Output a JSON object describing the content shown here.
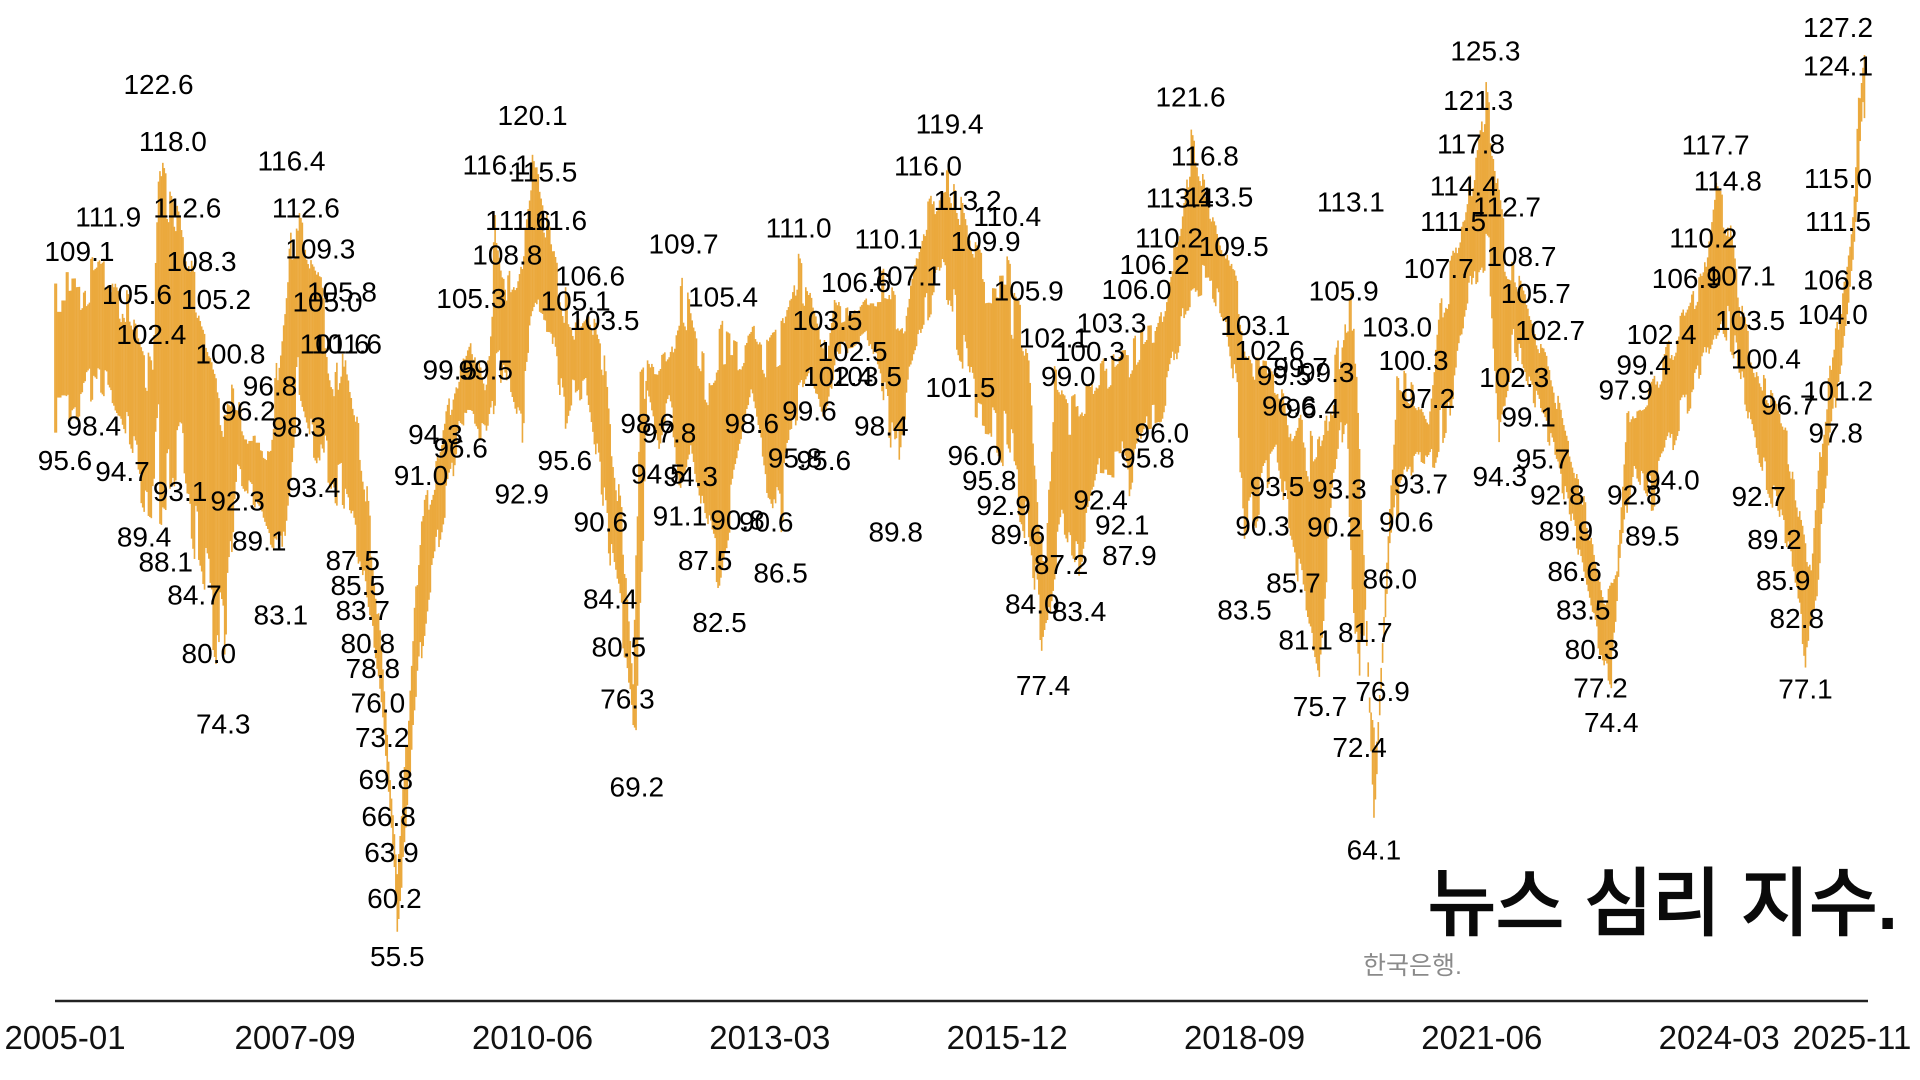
{
  "chart_data": {
    "type": "area",
    "title": "뉴스 심리 지수.",
    "source": "한국은행.",
    "band_color": "#EBA93D",
    "label_color": "#000000",
    "axis_color": "#222222",
    "x_axis": {
      "ticks": [
        {
          "m": 0,
          "label": "2005-01"
        },
        {
          "m": 32,
          "label": "2007-09"
        },
        {
          "m": 65,
          "label": "2010-06"
        },
        {
          "m": 98,
          "label": "2013-03"
        },
        {
          "m": 131,
          "label": "2015-12"
        },
        {
          "m": 164,
          "label": "2018-09"
        },
        {
          "m": 197,
          "label": "2021-06"
        },
        {
          "m": 230,
          "label": "2024-03"
        },
        {
          "m": 250,
          "label": "2025-11"
        }
      ],
      "start_label": "2005-01",
      "end_label": "2025-11",
      "total_months": 250
    },
    "y_value_range_visible": [
      55.5,
      127.2
    ],
    "annotations": [
      [
        0,
        95.6,
        "b"
      ],
      [
        2,
        109.1,
        "a"
      ],
      [
        4,
        98.4,
        "b"
      ],
      [
        6,
        111.9,
        "a"
      ],
      [
        8,
        94.7,
        "b"
      ],
      [
        10,
        105.6,
        "a"
      ],
      [
        11,
        89.4,
        "b"
      ],
      [
        12,
        102.4,
        "a"
      ],
      [
        13,
        122.6,
        "a"
      ],
      [
        14,
        88.1,
        "b"
      ],
      [
        15,
        118.0,
        "a"
      ],
      [
        16,
        93.1,
        "b"
      ],
      [
        17,
        112.6,
        "a"
      ],
      [
        18,
        84.7,
        "b"
      ],
      [
        19,
        108.3,
        "a"
      ],
      [
        20,
        80.0,
        "b"
      ],
      [
        21,
        105.2,
        "a"
      ],
      [
        22,
        74.3,
        "b"
      ],
      [
        23,
        100.8,
        "a"
      ],
      [
        24,
        92.3,
        "b"
      ],
      [
        25.5,
        96.2,
        "a"
      ],
      [
        27,
        89.1,
        "b"
      ],
      [
        28.5,
        96.8,
        "a"
      ],
      [
        30,
        83.1,
        "b"
      ],
      [
        31.5,
        116.4,
        "a"
      ],
      [
        32.5,
        98.3,
        "b"
      ],
      [
        33.5,
        112.6,
        "a"
      ],
      [
        34.5,
        93.4,
        "b"
      ],
      [
        35.5,
        109.3,
        "a"
      ],
      [
        36.5,
        105.0,
        "a"
      ],
      [
        37.5,
        101.6,
        "a"
      ],
      [
        38.5,
        105.8,
        "a"
      ],
      [
        39.2,
        101.6,
        "a"
      ],
      [
        40,
        87.5,
        "b"
      ],
      [
        40.7,
        85.5,
        "b"
      ],
      [
        41.4,
        83.7,
        "b"
      ],
      [
        42.1,
        80.8,
        "b"
      ],
      [
        42.8,
        78.8,
        "b"
      ],
      [
        43.5,
        76.0,
        "b"
      ],
      [
        44.1,
        73.2,
        "b"
      ],
      [
        44.6,
        69.8,
        "b"
      ],
      [
        45,
        66.8,
        "b"
      ],
      [
        45.4,
        63.9,
        "b"
      ],
      [
        45.8,
        60.2,
        "b"
      ],
      [
        46.2,
        55.5,
        "b"
      ],
      [
        49.5,
        91.0,
        "a"
      ],
      [
        51.5,
        94.3,
        "a"
      ],
      [
        53.5,
        99.5,
        "a"
      ],
      [
        55,
        96.6,
        "b"
      ],
      [
        56.5,
        105.3,
        "a"
      ],
      [
        58.5,
        99.5,
        "a"
      ],
      [
        60,
        116.1,
        "a"
      ],
      [
        61.5,
        108.8,
        "a"
      ],
      [
        63,
        111.6,
        "a"
      ],
      [
        63.5,
        92.9,
        "b"
      ],
      [
        65,
        120.1,
        "a"
      ],
      [
        66.5,
        115.5,
        "a"
      ],
      [
        68,
        111.6,
        "a"
      ],
      [
        69.5,
        95.6,
        "b"
      ],
      [
        71,
        105.1,
        "a"
      ],
      [
        73,
        106.6,
        "a"
      ],
      [
        75,
        103.5,
        "a"
      ],
      [
        74.5,
        90.6,
        "b"
      ],
      [
        75.8,
        84.4,
        "b"
      ],
      [
        77,
        80.5,
        "b"
      ],
      [
        78.2,
        76.3,
        "b"
      ],
      [
        79.5,
        69.2,
        "b"
      ],
      [
        81,
        98.6,
        "b"
      ],
      [
        82.5,
        94.5,
        "b"
      ],
      [
        84,
        97.8,
        "b"
      ],
      [
        85.5,
        91.1,
        "b"
      ],
      [
        87,
        94.3,
        "b"
      ],
      [
        86,
        109.7,
        "a"
      ],
      [
        89,
        87.5,
        "b"
      ],
      [
        91,
        82.5,
        "b"
      ],
      [
        91.5,
        105.4,
        "a"
      ],
      [
        93.5,
        90.8,
        "b"
      ],
      [
        95.5,
        98.6,
        "b"
      ],
      [
        97.5,
        90.6,
        "b"
      ],
      [
        99.5,
        86.5,
        "b"
      ],
      [
        101.5,
        95.8,
        "b"
      ],
      [
        102,
        111.0,
        "a"
      ],
      [
        103.5,
        99.6,
        "b"
      ],
      [
        105.5,
        95.6,
        "b"
      ],
      [
        106,
        103.5,
        "a"
      ],
      [
        107.5,
        102.4,
        "b"
      ],
      [
        109.5,
        102.5,
        "b"
      ],
      [
        110,
        106.6,
        "a"
      ],
      [
        111.5,
        103.5,
        "b"
      ],
      [
        113.5,
        98.4,
        "b"
      ],
      [
        114.5,
        110.1,
        "a"
      ],
      [
        115.5,
        89.8,
        "b"
      ],
      [
        117,
        107.1,
        "a"
      ],
      [
        120,
        116.0,
        "a"
      ],
      [
        123,
        119.4,
        "a"
      ],
      [
        124.5,
        101.5,
        "b"
      ],
      [
        125.5,
        113.2,
        "a"
      ],
      [
        126.5,
        96.0,
        "b"
      ],
      [
        128,
        109.9,
        "a"
      ],
      [
        128.5,
        95.8,
        "b"
      ],
      [
        130.5,
        92.9,
        "b"
      ],
      [
        131,
        110.4,
        "a"
      ],
      [
        132.5,
        89.6,
        "b"
      ],
      [
        134,
        105.9,
        "a"
      ],
      [
        134.5,
        84.0,
        "b"
      ],
      [
        136,
        77.4,
        "b"
      ],
      [
        137.5,
        102.1,
        "a"
      ],
      [
        138.5,
        87.2,
        "b"
      ],
      [
        139.5,
        99.0,
        "a"
      ],
      [
        141,
        83.4,
        "b"
      ],
      [
        142.5,
        100.3,
        "a"
      ],
      [
        144,
        92.4,
        "b"
      ],
      [
        145.5,
        103.3,
        "a"
      ],
      [
        147,
        92.1,
        "b"
      ],
      [
        148,
        87.9,
        "b"
      ],
      [
        149,
        106.0,
        "a"
      ],
      [
        150.5,
        95.8,
        "b"
      ],
      [
        151.5,
        106.2,
        "a"
      ],
      [
        152.5,
        96.0,
        "b"
      ],
      [
        153.5,
        110.2,
        "a"
      ],
      [
        155,
        113.4,
        "a"
      ],
      [
        156.5,
        121.6,
        "a"
      ],
      [
        158.5,
        116.8,
        "a"
      ],
      [
        160.5,
        113.5,
        "a"
      ],
      [
        162.5,
        109.5,
        "a"
      ],
      [
        164,
        83.5,
        "b"
      ],
      [
        165.5,
        103.1,
        "a"
      ],
      [
        166.5,
        90.3,
        "b"
      ],
      [
        167.5,
        102.6,
        "a"
      ],
      [
        168.5,
        93.5,
        "b"
      ],
      [
        169.5,
        99.5,
        "a"
      ],
      [
        170.2,
        96.6,
        "a"
      ],
      [
        170.8,
        85.7,
        "b"
      ],
      [
        171.8,
        99.7,
        "a"
      ],
      [
        172.5,
        81.1,
        "b"
      ],
      [
        173.5,
        96.4,
        "a"
      ],
      [
        174.5,
        75.7,
        "b"
      ],
      [
        175.5,
        99.3,
        "a"
      ],
      [
        176.5,
        90.2,
        "b"
      ],
      [
        177.2,
        93.3,
        "b"
      ],
      [
        177.8,
        105.9,
        "a"
      ],
      [
        178.8,
        113.1,
        "a"
      ],
      [
        180,
        72.4,
        "b"
      ],
      [
        180.8,
        81.7,
        "b"
      ],
      [
        182,
        64.1,
        "b"
      ],
      [
        183.2,
        76.9,
        "b"
      ],
      [
        184.2,
        86.0,
        "b"
      ],
      [
        185.2,
        103.0,
        "a"
      ],
      [
        186.5,
        90.6,
        "b"
      ],
      [
        187.5,
        100.3,
        "a"
      ],
      [
        188.5,
        93.7,
        "b"
      ],
      [
        189.5,
        97.2,
        "a"
      ],
      [
        191,
        107.7,
        "a"
      ],
      [
        193,
        111.5,
        "a"
      ],
      [
        194.5,
        114.4,
        "a"
      ],
      [
        195.5,
        117.8,
        "a"
      ],
      [
        196.5,
        121.3,
        "a"
      ],
      [
        197.5,
        125.3,
        "a"
      ],
      [
        199.5,
        94.3,
        "b"
      ],
      [
        200.5,
        112.7,
        "a"
      ],
      [
        201.5,
        102.3,
        "b"
      ],
      [
        202.5,
        108.7,
        "a"
      ],
      [
        203.5,
        99.1,
        "b"
      ],
      [
        204.5,
        105.7,
        "a"
      ],
      [
        205.5,
        95.7,
        "b"
      ],
      [
        206.5,
        102.7,
        "a"
      ],
      [
        207.5,
        92.8,
        "b"
      ],
      [
        208.7,
        89.9,
        "b"
      ],
      [
        209.9,
        86.6,
        "b"
      ],
      [
        211.1,
        83.5,
        "b"
      ],
      [
        212.3,
        80.3,
        "b"
      ],
      [
        213.5,
        77.2,
        "b"
      ],
      [
        215,
        74.4,
        "b"
      ],
      [
        217,
        97.9,
        "a"
      ],
      [
        218.2,
        92.8,
        "b"
      ],
      [
        219.5,
        99.4,
        "a"
      ],
      [
        220.7,
        89.5,
        "b"
      ],
      [
        222,
        102.4,
        "a"
      ],
      [
        223.5,
        94.0,
        "b"
      ],
      [
        225.5,
        106.9,
        "a"
      ],
      [
        227.8,
        110.2,
        "a"
      ],
      [
        229.5,
        117.7,
        "a"
      ],
      [
        231.2,
        114.8,
        "a"
      ],
      [
        233,
        107.1,
        "a"
      ],
      [
        234.3,
        103.5,
        "a"
      ],
      [
        235.5,
        92.7,
        "b"
      ],
      [
        236.5,
        100.4,
        "a"
      ],
      [
        237.7,
        89.2,
        "b"
      ],
      [
        238.9,
        85.9,
        "b"
      ],
      [
        239.6,
        96.7,
        "a"
      ],
      [
        240.8,
        82.8,
        "b"
      ],
      [
        242,
        77.1,
        "b"
      ],
      [
        245.8,
        104.0,
        "a"
      ],
      [
        246.2,
        97.8,
        "b"
      ],
      [
        246.9,
        106.8,
        "a"
      ],
      [
        247.2,
        101.2,
        "b"
      ],
      [
        247.9,
        111.5,
        "a"
      ],
      [
        248.7,
        115.0,
        "a"
      ],
      [
        249.4,
        124.1,
        "a"
      ],
      [
        250,
        127.2,
        "a"
      ]
    ],
    "band_shape_helpers": {
      "hi": [
        [
          41,
          97
        ],
        [
          42,
          92
        ],
        [
          43,
          86
        ],
        [
          44,
          79
        ],
        [
          45,
          70
        ],
        [
          46.2,
          61
        ],
        [
          47.5,
          72
        ],
        [
          48.5,
          82
        ],
        [
          76,
          97
        ],
        [
          77.5,
          90
        ],
        [
          79,
          76
        ],
        [
          80,
          104
        ],
        [
          82,
          102
        ],
        [
          84,
          103
        ],
        [
          88,
          104
        ],
        [
          90,
          103
        ],
        [
          94,
          104
        ],
        [
          96,
          105
        ],
        [
          98,
          104
        ],
        [
          100,
          106
        ],
        [
          104,
          107
        ],
        [
          106.8,
          108
        ],
        [
          108,
          106
        ],
        [
          112,
          108
        ],
        [
          135.5,
          90
        ],
        [
          136.5,
          88
        ],
        [
          180.5,
          88
        ],
        [
          181.5,
          74
        ],
        [
          182.5,
          72
        ],
        [
          183.5,
          83
        ],
        [
          184.5,
          94
        ],
        [
          208.5,
          97
        ],
        [
          210.5,
          93
        ],
        [
          212.5,
          88
        ],
        [
          214.2,
          83
        ],
        [
          215.8,
          85
        ],
        [
          242.8,
          86
        ],
        [
          244,
          95
        ]
      ],
      "lo": [
        [
          47.5,
          62
        ],
        [
          48.5,
          72
        ],
        [
          50.5,
          82
        ],
        [
          52.5,
          88
        ],
        [
          54,
          92
        ],
        [
          57.5,
          95
        ],
        [
          59.5,
          96
        ],
        [
          61,
          100
        ],
        [
          64,
          97
        ],
        [
          66,
          104
        ],
        [
          67.5,
          104
        ],
        [
          70.5,
          98
        ],
        [
          72.5,
          99
        ],
        [
          80.5,
          85
        ],
        [
          117.5,
          101
        ],
        [
          119.5,
          104
        ],
        [
          122,
          107
        ],
        [
          154,
          100
        ],
        [
          155.5,
          104
        ],
        [
          157.5,
          106
        ],
        [
          159.5,
          107
        ],
        [
          161.5,
          104
        ],
        [
          163,
          98
        ],
        [
          178,
          96
        ],
        [
          179,
          80
        ],
        [
          190.5,
          93
        ],
        [
          192.5,
          97
        ],
        [
          194,
          102
        ],
        [
          196,
          107
        ],
        [
          198,
          108
        ],
        [
          216,
          84
        ],
        [
          224.5,
          96
        ],
        [
          226.5,
          98
        ],
        [
          228.5,
          101
        ],
        [
          230.5,
          104
        ],
        [
          232,
          102
        ],
        [
          233.7,
          98
        ],
        [
          243.5,
          82
        ],
        [
          244.7,
          90
        ],
        [
          248,
          105
        ],
        [
          249,
          112
        ],
        [
          250,
          121
        ]
      ]
    }
  }
}
